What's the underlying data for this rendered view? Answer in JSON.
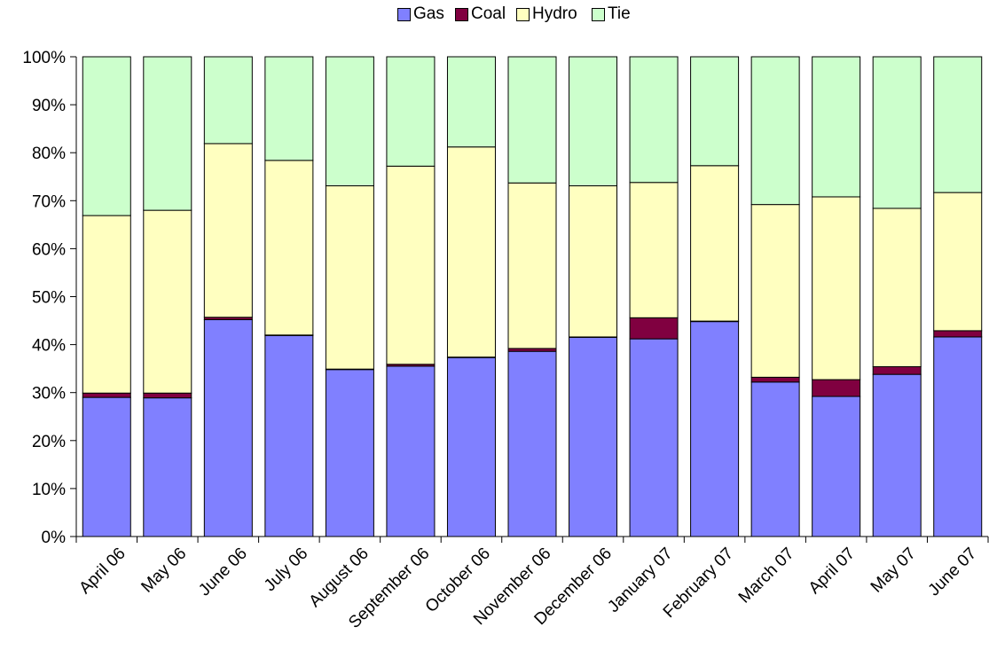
{
  "chart_data": {
    "type": "bar",
    "stacked": true,
    "categories": [
      "April 06",
      "May 06",
      "June 06",
      "July 06",
      "August 06",
      "September 06",
      "October 06",
      "November 06",
      "December 06",
      "January 07",
      "February 07",
      "March 07",
      "April 07",
      "May  07",
      "June 07"
    ],
    "series": [
      {
        "name": "Gas",
        "color": "#8080ff",
        "values": [
          29.0,
          28.9,
          45.2,
          41.9,
          34.8,
          35.5,
          37.3,
          38.6,
          41.5,
          41.2,
          44.8,
          32.2,
          29.2,
          33.8,
          41.6
        ]
      },
      {
        "name": "Coal",
        "color": "#800040",
        "values": [
          0.9,
          1.0,
          0.5,
          0.1,
          0.1,
          0.4,
          0.1,
          0.6,
          0.1,
          4.4,
          0.1,
          1.0,
          3.5,
          1.6,
          1.3
        ]
      },
      {
        "name": "Hydro",
        "color": "#ffffc0",
        "values": [
          37.0,
          38.1,
          36.2,
          36.4,
          38.2,
          41.3,
          43.8,
          34.5,
          31.5,
          28.2,
          32.4,
          36.0,
          38.1,
          33.0,
          28.8
        ]
      },
      {
        "name": "Tie",
        "color": "#ccffcc",
        "values": [
          33.1,
          32.0,
          18.1,
          21.6,
          26.9,
          22.8,
          18.8,
          26.3,
          26.9,
          26.2,
          22.7,
          30.8,
          29.2,
          31.6,
          28.3
        ]
      }
    ],
    "y_ticks": [
      "0%",
      "10%",
      "20%",
      "30%",
      "40%",
      "50%",
      "60%",
      "70%",
      "80%",
      "90%",
      "100%"
    ],
    "ylim": [
      0,
      100
    ],
    "grid": false,
    "legend_position": "top-center"
  }
}
